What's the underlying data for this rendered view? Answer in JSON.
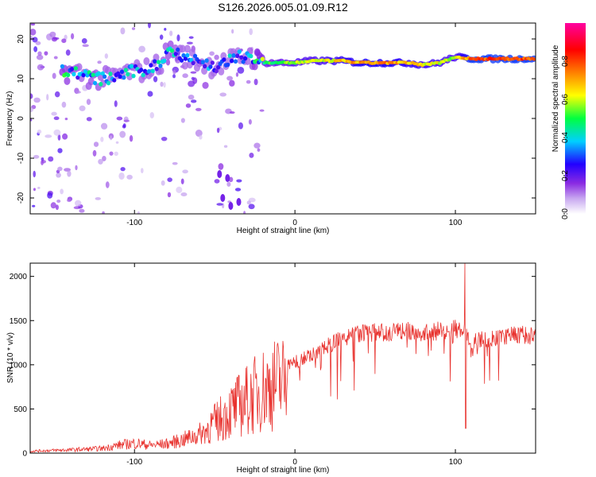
{
  "title": "S126.2026.005.01.09.R12",
  "colors": {
    "snr_line": "#e8322e",
    "frame": "#000000"
  },
  "chart_data": [
    {
      "type": "heatmap",
      "xlabel": "Height of straight line (km)",
      "ylabel": "Frequency (Hz)",
      "xlim": [
        -165,
        150
      ],
      "ylim": [
        -24,
        24
      ],
      "xticks": [
        -100,
        0,
        100
      ],
      "yticks": [
        20,
        10,
        0,
        -10,
        -20
      ],
      "colorbar": {
        "label": "Normalized spectral amplitude",
        "range": [
          0.0,
          1.0
        ],
        "ticks": [
          "0.0",
          "0.2",
          "0.4",
          "0.6",
          "0.8"
        ],
        "tick_values": [
          0.0,
          0.2,
          0.4,
          0.6,
          0.8
        ],
        "colormap": [
          "#ffffff",
          "#c8a8f0",
          "#8a2be2",
          "#2200ff",
          "#00d0ff",
          "#00ff40",
          "#ffff00",
          "#ff8000",
          "#ff0000",
          "#ff00a0"
        ]
      },
      "ridge": [
        {
          "x": -145,
          "y": 12,
          "a": 0.45
        },
        {
          "x": -135,
          "y": 11.5,
          "a": 0.35
        },
        {
          "x": -125,
          "y": 10,
          "a": 0.4
        },
        {
          "x": -115,
          "y": 10,
          "a": 0.35
        },
        {
          "x": -105,
          "y": 11.5,
          "a": 0.35
        },
        {
          "x": -95,
          "y": 12,
          "a": 0.35
        },
        {
          "x": -85,
          "y": 13.5,
          "a": 0.35
        },
        {
          "x": -78,
          "y": 17.5,
          "a": 0.4
        },
        {
          "x": -65,
          "y": 15,
          "a": 0.3
        },
        {
          "x": -50,
          "y": 13,
          "a": 0.3
        },
        {
          "x": -30,
          "y": 16,
          "a": 0.35
        },
        {
          "x": -20,
          "y": 14,
          "a": 0.5
        },
        {
          "x": -10,
          "y": 14,
          "a": 0.55
        },
        {
          "x": 0,
          "y": 14,
          "a": 0.6
        },
        {
          "x": 10,
          "y": 14.5,
          "a": 0.6
        },
        {
          "x": 20,
          "y": 14.5,
          "a": 0.65
        },
        {
          "x": 30,
          "y": 14.5,
          "a": 0.7
        },
        {
          "x": 40,
          "y": 14,
          "a": 0.75
        },
        {
          "x": 50,
          "y": 14,
          "a": 0.75
        },
        {
          "x": 60,
          "y": 14,
          "a": 0.75
        },
        {
          "x": 70,
          "y": 14,
          "a": 0.7
        },
        {
          "x": 80,
          "y": 13.5,
          "a": 0.65
        },
        {
          "x": 90,
          "y": 14,
          "a": 0.65
        },
        {
          "x": 100,
          "y": 15.5,
          "a": 0.6
        },
        {
          "x": 110,
          "y": 15,
          "a": 0.85
        },
        {
          "x": 120,
          "y": 15,
          "a": 0.85
        },
        {
          "x": 130,
          "y": 15,
          "a": 0.85
        },
        {
          "x": 140,
          "y": 15,
          "a": 0.85
        },
        {
          "x": 150,
          "y": 15,
          "a": 0.85
        }
      ]
    },
    {
      "type": "line",
      "xlabel": "Height of straight line (km)",
      "ylabel": "SNR (10 * v/v)",
      "xlim": [
        -165,
        150
      ],
      "ylim": [
        0,
        2150
      ],
      "xticks": [
        -100,
        0,
        100
      ],
      "yticks": [
        0,
        500,
        1000,
        1500,
        2000
      ],
      "envelope": [
        {
          "x": -165,
          "y": 30
        },
        {
          "x": -140,
          "y": 50
        },
        {
          "x": -120,
          "y": 70
        },
        {
          "x": -110,
          "y": 120
        },
        {
          "x": -100,
          "y": 150
        },
        {
          "x": -90,
          "y": 120
        },
        {
          "x": -80,
          "y": 140
        },
        {
          "x": -70,
          "y": 200
        },
        {
          "x": -60,
          "y": 280
        },
        {
          "x": -50,
          "y": 420
        },
        {
          "x": -40,
          "y": 600
        },
        {
          "x": -30,
          "y": 750
        },
        {
          "x": -20,
          "y": 900
        },
        {
          "x": -10,
          "y": 1000
        },
        {
          "x": 0,
          "y": 1050
        },
        {
          "x": 10,
          "y": 1150
        },
        {
          "x": 20,
          "y": 1250
        },
        {
          "x": 30,
          "y": 1350
        },
        {
          "x": 40,
          "y": 1380
        },
        {
          "x": 50,
          "y": 1400
        },
        {
          "x": 60,
          "y": 1400
        },
        {
          "x": 70,
          "y": 1420
        },
        {
          "x": 80,
          "y": 1400
        },
        {
          "x": 90,
          "y": 1420
        },
        {
          "x": 100,
          "y": 1450
        },
        {
          "x": 105,
          "y": 1400
        },
        {
          "x": 110,
          "y": 1300
        },
        {
          "x": 120,
          "y": 1320
        },
        {
          "x": 130,
          "y": 1350
        },
        {
          "x": 140,
          "y": 1380
        },
        {
          "x": 150,
          "y": 1350
        }
      ],
      "peak": {
        "x": 106,
        "y": 2150
      }
    }
  ]
}
